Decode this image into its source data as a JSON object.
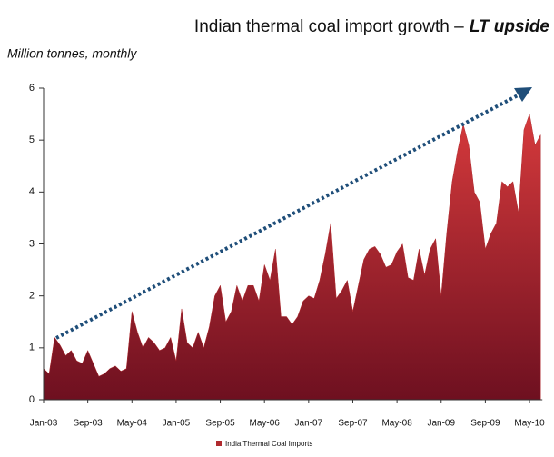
{
  "chart_data": {
    "type": "area",
    "title": "Indian thermal coal import growth –",
    "title_emphasis": "LT upside",
    "subtitle": "Million tonnes, monthly",
    "categories": [
      "Jan-03",
      null,
      null,
      null,
      null,
      null,
      null,
      null,
      "Sep-03",
      null,
      null,
      null,
      null,
      null,
      null,
      null,
      "May-04",
      null,
      null,
      null,
      null,
      null,
      null,
      null,
      "Jan-05",
      null,
      null,
      null,
      null,
      null,
      null,
      null,
      "Sep-05",
      null,
      null,
      null,
      null,
      null,
      null,
      null,
      "May-06",
      null,
      null,
      null,
      null,
      null,
      null,
      null,
      "Jan-07",
      null,
      null,
      null,
      null,
      null,
      null,
      null,
      "Sep-07",
      null,
      null,
      null,
      null,
      null,
      null,
      null,
      "May-08",
      null,
      null,
      null,
      null,
      null,
      null,
      null,
      "Jan-09",
      null,
      null,
      null,
      null,
      null,
      null,
      null,
      "Sep-09",
      null,
      null,
      null,
      null,
      null,
      null,
      null,
      "May-10",
      null,
      null
    ],
    "series": [
      {
        "name": "India Thermal Coal Imports",
        "color": "#b02a2e",
        "values": [
          0.6,
          0.5,
          1.2,
          1.05,
          0.85,
          0.95,
          0.75,
          0.7,
          0.95,
          0.7,
          0.45,
          0.5,
          0.6,
          0.65,
          0.55,
          0.6,
          1.7,
          1.3,
          1.0,
          1.2,
          1.1,
          0.95,
          1.0,
          1.2,
          0.75,
          1.75,
          1.1,
          1.0,
          1.3,
          1.0,
          1.4,
          2.0,
          2.2,
          1.5,
          1.7,
          2.2,
          1.9,
          2.2,
          2.2,
          1.9,
          2.6,
          2.3,
          2.9,
          1.6,
          1.6,
          1.45,
          1.6,
          1.9,
          2.0,
          1.95,
          2.3,
          2.8,
          3.4,
          1.95,
          2.1,
          2.3,
          1.7,
          2.2,
          2.7,
          2.9,
          2.95,
          2.8,
          2.55,
          2.6,
          2.85,
          3.0,
          2.35,
          2.3,
          2.9,
          2.4,
          2.9,
          3.1,
          2.0,
          3.2,
          4.2,
          4.8,
          5.3,
          4.9,
          4.0,
          3.8,
          2.9,
          3.2,
          3.4,
          4.2,
          4.1,
          4.2,
          3.6,
          5.2,
          5.5,
          4.9,
          5.1
        ]
      }
    ],
    "ylim": [
      0,
      6
    ],
    "yticks": [
      0,
      1,
      2,
      3,
      4,
      5,
      6
    ],
    "grid": false,
    "legend": "bottom"
  }
}
